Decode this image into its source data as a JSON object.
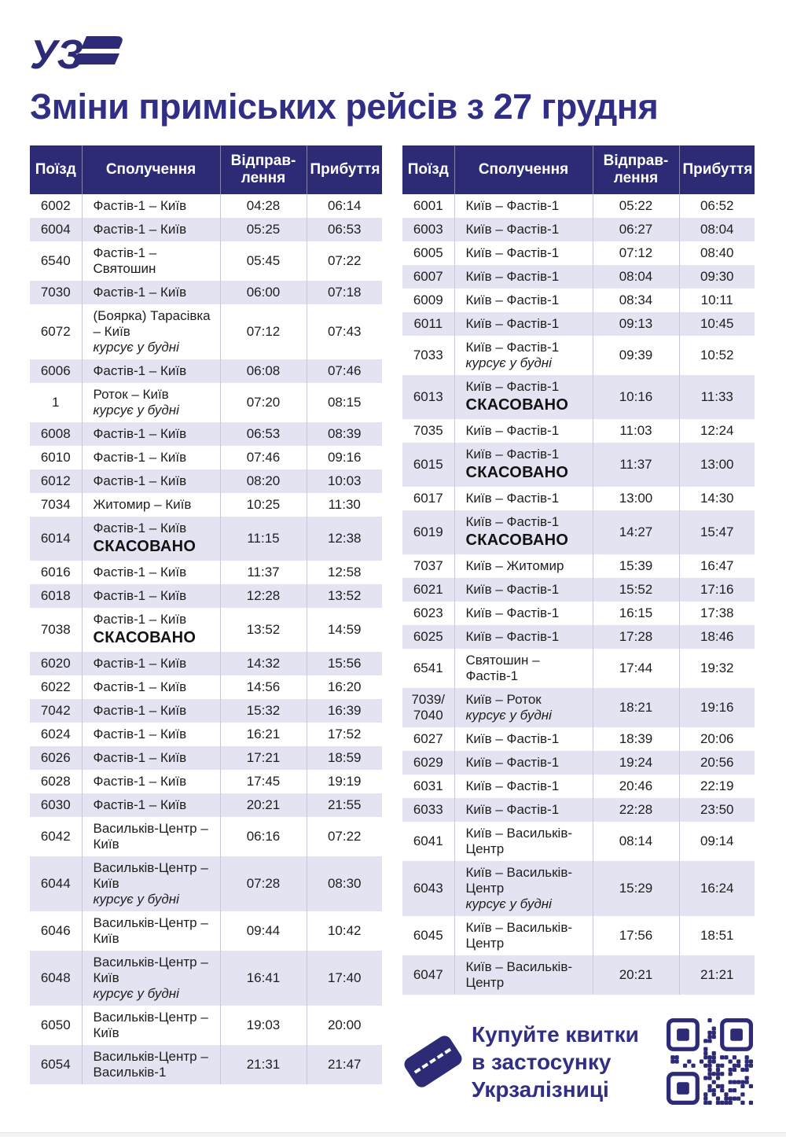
{
  "page": {
    "title": "Зміни приміських рейсів з 27 грудня",
    "logo_text": "УЗ"
  },
  "columns": [
    "Поїзд",
    "Сполучення",
    "Відправ-лення",
    "Прибуття"
  ],
  "tables": {
    "left": {
      "rows": [
        {
          "train": "6002",
          "route": "Фастів-1 – Київ",
          "dep": "04:28",
          "arr": "06:14"
        },
        {
          "train": "6004",
          "route": "Фастів-1 – Київ",
          "dep": "05:25",
          "arr": "06:53"
        },
        {
          "train": "6540",
          "route": "Фастів-1 – Святошин",
          "dep": "05:45",
          "arr": "07:22"
        },
        {
          "train": "7030",
          "route": "Фастів-1 – Київ",
          "dep": "06:00",
          "arr": "07:18"
        },
        {
          "train": "6072",
          "route": "(Боярка) Тарасівка – Київ",
          "note": "курсує у будні",
          "dep": "07:12",
          "arr": "07:43"
        },
        {
          "train": "6006",
          "route": "Фастів-1 – Київ",
          "dep": "06:08",
          "arr": "07:46"
        },
        {
          "train": "1",
          "route": "Роток – Київ",
          "note": "курсує у будні",
          "dep": "07:20",
          "arr": "08:15"
        },
        {
          "train": "6008",
          "route": "Фастів-1 – Київ",
          "dep": "06:53",
          "arr": "08:39"
        },
        {
          "train": "6010",
          "route": "Фастів-1 – Київ",
          "dep": "07:46",
          "arr": "09:16"
        },
        {
          "train": "6012",
          "route": "Фастів-1 – Київ",
          "dep": "08:20",
          "arr": "10:03"
        },
        {
          "train": "7034",
          "route": "Житомир – Київ",
          "dep": "10:25",
          "arr": "11:30"
        },
        {
          "train": "6014",
          "route": "Фастів-1 – Київ",
          "status": "СКАСОВАНО",
          "dep": "11:15",
          "arr": "12:38"
        },
        {
          "train": "6016",
          "route": "Фастів-1 – Київ",
          "dep": "11:37",
          "arr": "12:58"
        },
        {
          "train": "6018",
          "route": "Фастів-1 – Київ",
          "dep": "12:28",
          "arr": "13:52"
        },
        {
          "train": "7038",
          "route": "Фастів-1 – Київ",
          "status": "СКАСОВАНО",
          "dep": "13:52",
          "arr": "14:59"
        },
        {
          "train": "6020",
          "route": "Фастів-1 – Київ",
          "dep": "14:32",
          "arr": "15:56"
        },
        {
          "train": "6022",
          "route": "Фастів-1 – Київ",
          "dep": "14:56",
          "arr": "16:20"
        },
        {
          "train": "7042",
          "route": "Фастів-1 – Київ",
          "dep": "15:32",
          "arr": "16:39"
        },
        {
          "train": "6024",
          "route": "Фастів-1 – Київ",
          "dep": "16:21",
          "arr": "17:52"
        },
        {
          "train": "6026",
          "route": "Фастів-1 – Київ",
          "dep": "17:21",
          "arr": "18:59"
        },
        {
          "train": "6028",
          "route": "Фастів-1 – Київ",
          "dep": "17:45",
          "arr": "19:19"
        },
        {
          "train": "6030",
          "route": "Фастів-1 – Київ",
          "dep": "20:21",
          "arr": "21:55"
        },
        {
          "train": "6042",
          "route": "Васильків-Центр – Київ",
          "dep": "06:16",
          "arr": "07:22"
        },
        {
          "train": "6044",
          "route": "Васильків-Центр – Київ",
          "note": "курсує у будні",
          "dep": "07:28",
          "arr": "08:30"
        },
        {
          "train": "6046",
          "route": "Васильків-Центр – Київ",
          "dep": "09:44",
          "arr": "10:42"
        },
        {
          "train": "6048",
          "route": "Васильків-Центр – Київ",
          "note": "курсує у будні",
          "dep": "16:41",
          "arr": "17:40"
        },
        {
          "train": "6050",
          "route": "Васильків-Центр – Київ",
          "dep": "19:03",
          "arr": "20:00"
        },
        {
          "train": "6054",
          "route": "Васильків-Центр – Васильків-1",
          "dep": "21:31",
          "arr": "21:47"
        }
      ]
    },
    "right": {
      "rows": [
        {
          "train": "6001",
          "route": "Київ – Фастів-1",
          "dep": "05:22",
          "arr": "06:52"
        },
        {
          "train": "6003",
          "route": "Київ – Фастів-1",
          "dep": "06:27",
          "arr": "08:04"
        },
        {
          "train": "6005",
          "route": "Київ – Фастів-1",
          "dep": "07:12",
          "arr": "08:40"
        },
        {
          "train": "6007",
          "route": "Київ – Фастів-1",
          "dep": "08:04",
          "arr": "09:30"
        },
        {
          "train": "6009",
          "route": "Київ – Фастів-1",
          "dep": "08:34",
          "arr": "10:11"
        },
        {
          "train": "6011",
          "route": "Київ – Фастів-1",
          "dep": "09:13",
          "arr": "10:45"
        },
        {
          "train": "7033",
          "route": "Київ – Фастів-1",
          "note": "курсує у будні",
          "dep": "09:39",
          "arr": "10:52"
        },
        {
          "train": "6013",
          "route": "Київ – Фастів-1",
          "status": "СКАСОВАНО",
          "dep": "10:16",
          "arr": "11:33"
        },
        {
          "train": "7035",
          "route": "Київ – Фастів-1",
          "dep": "11:03",
          "arr": "12:24"
        },
        {
          "train": "6015",
          "route": "Київ – Фастів-1",
          "status": "СКАСОВАНО",
          "dep": "11:37",
          "arr": "13:00"
        },
        {
          "train": "6017",
          "route": "Київ – Фастів-1",
          "dep": "13:00",
          "arr": "14:30"
        },
        {
          "train": "6019",
          "route": "Київ – Фастів-1",
          "status": "СКАСОВАНО",
          "dep": "14:27",
          "arr": "15:47"
        },
        {
          "train": "7037",
          "route": "Київ – Житомир",
          "dep": "15:39",
          "arr": "16:47"
        },
        {
          "train": "6021",
          "route": "Київ – Фастів-1",
          "dep": "15:52",
          "arr": "17:16"
        },
        {
          "train": "6023",
          "route": "Київ – Фастів-1",
          "dep": "16:15",
          "arr": "17:38"
        },
        {
          "train": "6025",
          "route": "Київ – Фастів-1",
          "dep": "17:28",
          "arr": "18:46"
        },
        {
          "train": "6541",
          "route": "Святошин – Фастів-1",
          "dep": "17:44",
          "arr": "19:32"
        },
        {
          "train": "7039/7040",
          "route": "Київ – Роток",
          "note": "курсує у будні",
          "dep": "18:21",
          "arr": "19:16"
        },
        {
          "train": "6027",
          "route": "Київ – Фастів-1",
          "dep": "18:39",
          "arr": "20:06"
        },
        {
          "train": "6029",
          "route": "Київ – Фастів-1",
          "dep": "19:24",
          "arr": "20:56"
        },
        {
          "train": "6031",
          "route": "Київ – Фастів-1",
          "dep": "20:46",
          "arr": "22:19"
        },
        {
          "train": "6033",
          "route": "Київ – Фастів-1",
          "dep": "22:28",
          "arr": "23:50"
        },
        {
          "train": "6041",
          "route": "Київ – Васильків-Центр",
          "dep": "08:14",
          "arr": "09:14"
        },
        {
          "train": "6043",
          "route": "Київ – Васильків-Центр",
          "note": "курсує у будні",
          "dep": "15:29",
          "arr": "16:24"
        },
        {
          "train": "6045",
          "route": "Київ – Васильків-Центр",
          "dep": "17:56",
          "arr": "18:51"
        },
        {
          "train": "6047",
          "route": "Київ – Васильків-Центр",
          "dep": "20:21",
          "arr": "21:21"
        }
      ]
    }
  },
  "promo": {
    "text": "Купуйте квитки в застосунку Укрзалізниці"
  },
  "icons": {
    "ticket": "ticket-icon",
    "qr": "qr-code-icon",
    "logo": "uz-logo-icon"
  },
  "colors": {
    "navy": "#2d2b76",
    "title": "#312e85",
    "row_alt": "#e4e3f1",
    "text": "#1e1e1e",
    "border": "#c9c8d6",
    "cancelled": "#121212"
  }
}
